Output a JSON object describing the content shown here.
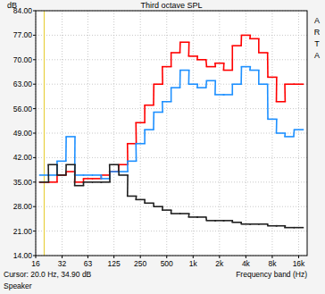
{
  "chart_data": {
    "type": "step",
    "title": "Third octave SPL",
    "y_label": "dB",
    "x_label": "Frequency band (Hz)",
    "annotations": [
      {
        "text": "Cursor: 20.0 Hz, 34.90 dB",
        "x": 20
      },
      {
        "text": "Speaker"
      },
      {
        "text": "ARTA"
      }
    ],
    "log": "x",
    "grid": true,
    "xlim": [
      16,
      20000
    ],
    "ylim": [
      14,
      84
    ],
    "xticks": [
      16,
      32,
      63,
      125,
      250,
      500,
      {
        "value": 1000,
        "label": "1k"
      },
      {
        "value": 2000,
        "label": "2k"
      },
      {
        "value": 4000,
        "label": "4k"
      },
      {
        "value": 8000,
        "label": "8k"
      },
      {
        "value": 16000,
        "label": "16k"
      }
    ],
    "yticks": [
      {
        "value": 14,
        "label": "14.00"
      },
      {
        "value": 21,
        "label": "21.00"
      },
      {
        "value": 28,
        "label": "28.00"
      },
      {
        "value": 35,
        "label": "35.00"
      },
      {
        "value": 42,
        "label": "42.00"
      },
      {
        "value": 49,
        "label": "49.00"
      },
      {
        "value": 56,
        "label": "56.00"
      },
      {
        "value": 63,
        "label": "63.00"
      },
      {
        "value": 70,
        "label": "70.00"
      },
      {
        "value": 77,
        "label": "77.00"
      },
      {
        "value": 84,
        "label": "84.00"
      }
    ],
    "x": [
      20,
      25,
      31.5,
      40,
      50,
      63,
      80,
      100,
      125,
      160,
      200,
      250,
      315,
      400,
      500,
      630,
      800,
      1000,
      1250,
      1600,
      2000,
      2500,
      3150,
      4000,
      5000,
      6300,
      8000,
      10000,
      12500,
      16000
    ],
    "series": [
      {
        "color": "#ff0000",
        "values": [
          35,
          35,
          37,
          38,
          35,
          36,
          36,
          37,
          38,
          40,
          46,
          52,
          57,
          63,
          68,
          72,
          75,
          71,
          70,
          68,
          69,
          67,
          74,
          77,
          76,
          72,
          65,
          58,
          63,
          63
        ]
      },
      {
        "color": "#1e90ff",
        "values": [
          37,
          37,
          41,
          48,
          37,
          37,
          37,
          36,
          38,
          38,
          41,
          46,
          50,
          55,
          58,
          62,
          67,
          63,
          62,
          64,
          60,
          60,
          63,
          68,
          67,
          63,
          53,
          49,
          48,
          50
        ]
      },
      {
        "color": "#202020",
        "values": [
          35,
          40,
          37,
          40,
          34,
          35,
          35,
          35,
          40,
          37,
          31,
          30,
          29,
          28,
          27,
          26,
          26,
          25,
          25,
          24,
          24,
          24,
          23.5,
          23,
          23,
          23,
          22.5,
          22.5,
          22,
          22
        ]
      }
    ]
  }
}
